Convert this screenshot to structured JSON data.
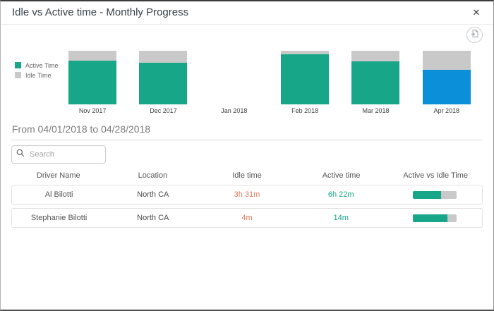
{
  "dialog": {
    "title": "Idle vs Active time - Monthly Progress",
    "close_glyph": "✕"
  },
  "toolbar": {
    "export_icon": "export-report-icon"
  },
  "legend": {
    "items": [
      {
        "label": "Active Time",
        "color": "#18A689"
      },
      {
        "label": "Idle Time",
        "color": "#C9C9C9"
      }
    ]
  },
  "chart_data": {
    "type": "bar",
    "subtype": "stacked-100-percent",
    "categories": [
      "Nov 2017",
      "Dec 2017",
      "Jan 2018",
      "Feb 2018",
      "Mar 2018",
      "Apr 2018"
    ],
    "series": [
      {
        "name": "Active Time",
        "color": "#18A689",
        "values": [
          82,
          78,
          null,
          93,
          80,
          65
        ]
      },
      {
        "name": "Idle Time",
        "color": "#C9C9C9",
        "values": [
          18,
          22,
          null,
          7,
          20,
          35
        ]
      }
    ],
    "highlighted_category": "Apr 2018",
    "highlight_color": "#0B8FD8",
    "ylim": [
      0,
      100
    ],
    "grid": false,
    "legend_position": "left"
  },
  "period": {
    "label": "From 04/01/2018 to 04/28/2018"
  },
  "search": {
    "placeholder": "Search"
  },
  "table": {
    "columns": [
      "Driver Name",
      "Location",
      "Idle time",
      "Active time",
      "Active vs Idle Time"
    ],
    "rows": [
      {
        "driver": "Al Bilotti",
        "location": "North CA",
        "idle_time": "3h 31m",
        "active_time": "6h 22m",
        "active_pct": 64
      },
      {
        "driver": "Stephanie Bilotti",
        "location": "North CA",
        "idle_time": "4m",
        "active_time": "14m",
        "active_pct": 78
      }
    ]
  },
  "colors": {
    "active": "#18A689",
    "idle": "#C9C9C9",
    "highlight": "#0B8FD8",
    "idle_text": "#E0795C",
    "active_text": "#18A689"
  }
}
